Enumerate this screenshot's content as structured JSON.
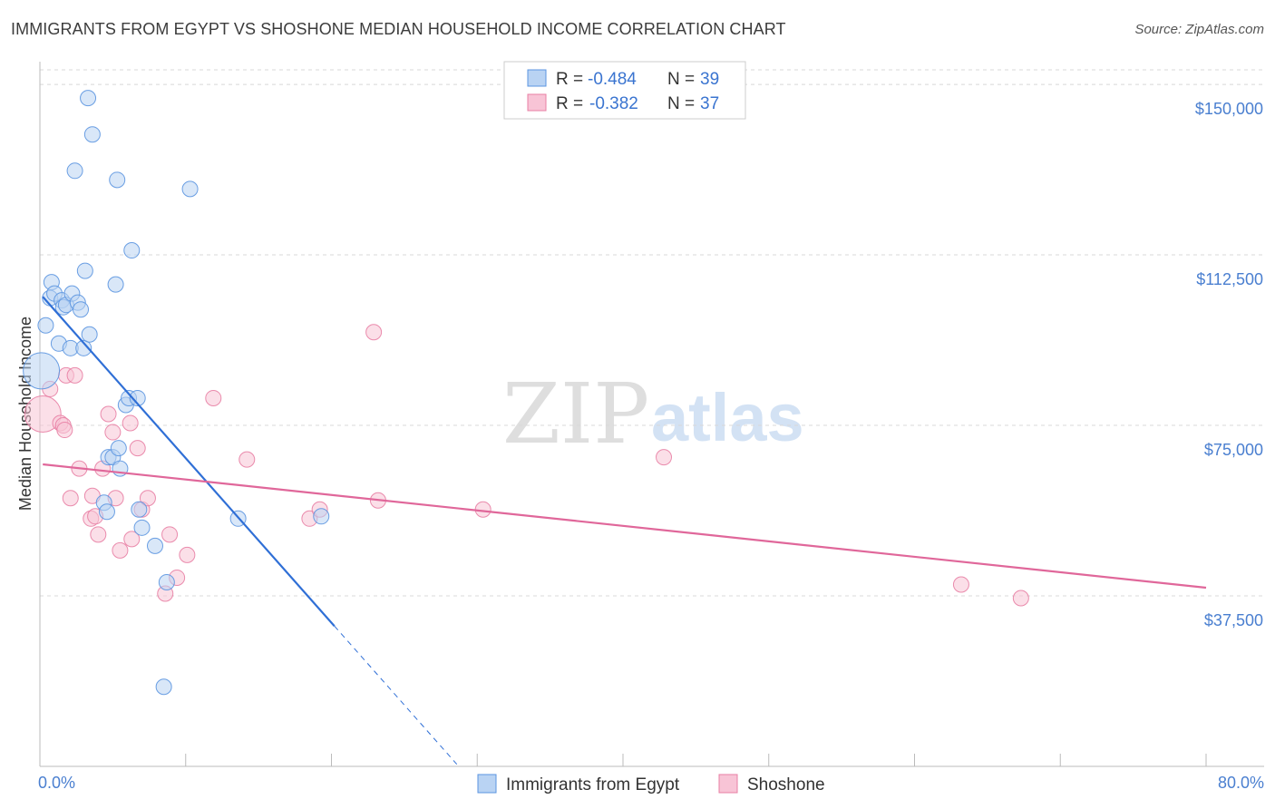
{
  "title": "IMMIGRANTS FROM EGYPT VS SHOSHONE MEDIAN HOUSEHOLD INCOME CORRELATION CHART",
  "source": "Source: ZipAtlas.com",
  "watermark": {
    "part1": "ZIP",
    "part2": "atlas"
  },
  "colors": {
    "blue": "#5b95e0",
    "blue_fill": "#b9d3f3",
    "blue_line": "#2f6fd6",
    "pink": "#e87fa4",
    "pink_fill": "#f8c4d6",
    "pink_line": "#e0679a",
    "tick_text": "#4a7fd0"
  },
  "legend": {
    "r_label": "R = ",
    "n_label": "N = ",
    "rows": [
      {
        "r": "-0.484",
        "n": "39"
      },
      {
        "r": "-0.382",
        "n": "37"
      }
    ]
  },
  "chart_data": {
    "type": "scatter",
    "title": "IMMIGRANTS FROM EGYPT VS SHOSHONE MEDIAN HOUSEHOLD INCOME CORRELATION CHART",
    "xlabel": "",
    "ylabel": "Median Household Income",
    "xlim": [
      0,
      80
    ],
    "ylim": [
      0,
      155000
    ],
    "x_tick_labels": {
      "left": "0.0%",
      "right": "80.0%"
    },
    "y_ticks": [
      {
        "value": 37500,
        "label": "$37,500"
      },
      {
        "value": 75000,
        "label": "$75,000"
      },
      {
        "value": 112500,
        "label": "$112,500"
      },
      {
        "value": 150000,
        "label": "$150,000"
      }
    ],
    "series": [
      {
        "name": "Immigrants from Egypt",
        "color": "blue",
        "r": -0.484,
        "n": 39,
        "trend": {
          "x_start": 0.2,
          "x_solid_end": 20.2,
          "x_dash_end": 28.6,
          "y_at_x0": 104000,
          "slope_per_pct": -3620
        },
        "points": [
          [
            0.1,
            87000
          ],
          [
            0.4,
            97000
          ],
          [
            0.7,
            103000
          ],
          [
            0.8,
            106500
          ],
          [
            1.0,
            104000
          ],
          [
            1.3,
            93000
          ],
          [
            1.5,
            102500
          ],
          [
            1.6,
            101000
          ],
          [
            1.8,
            101500
          ],
          [
            2.1,
            92000
          ],
          [
            2.2,
            104000
          ],
          [
            2.4,
            131000
          ],
          [
            2.6,
            102000
          ],
          [
            2.8,
            100500
          ],
          [
            3.0,
            92000
          ],
          [
            3.1,
            109000
          ],
          [
            3.3,
            147000
          ],
          [
            3.4,
            95000
          ],
          [
            3.6,
            139000
          ],
          [
            4.4,
            58000
          ],
          [
            4.6,
            56000
          ],
          [
            4.7,
            68000
          ],
          [
            5.0,
            68000
          ],
          [
            5.2,
            106000
          ],
          [
            5.3,
            129000
          ],
          [
            5.4,
            70000
          ],
          [
            5.5,
            65500
          ],
          [
            5.9,
            79500
          ],
          [
            6.1,
            81000
          ],
          [
            6.3,
            113500
          ],
          [
            6.7,
            81000
          ],
          [
            6.8,
            56500
          ],
          [
            7.0,
            52500
          ],
          [
            7.9,
            48500
          ],
          [
            8.5,
            17500
          ],
          [
            8.7,
            40500
          ],
          [
            10.3,
            127000
          ],
          [
            13.6,
            54500
          ],
          [
            19.3,
            55000
          ]
        ]
      },
      {
        "name": "Shoshone",
        "color": "pink",
        "r": -0.382,
        "n": 37,
        "trend": {
          "x_start": 0.2,
          "x_end": 80.0,
          "y_at_x0": 66500,
          "slope_per_pct": -340
        },
        "points": [
          [
            0.2,
            77500
          ],
          [
            0.7,
            83000
          ],
          [
            1.4,
            75500
          ],
          [
            1.6,
            75000
          ],
          [
            1.7,
            74000
          ],
          [
            1.8,
            86000
          ],
          [
            2.1,
            59000
          ],
          [
            2.4,
            86000
          ],
          [
            2.7,
            65500
          ],
          [
            3.5,
            54500
          ],
          [
            3.6,
            59500
          ],
          [
            3.8,
            55000
          ],
          [
            4.0,
            51000
          ],
          [
            4.3,
            65500
          ],
          [
            4.7,
            77500
          ],
          [
            5.0,
            73500
          ],
          [
            5.2,
            59000
          ],
          [
            5.5,
            47500
          ],
          [
            6.2,
            75500
          ],
          [
            6.3,
            50000
          ],
          [
            6.7,
            70000
          ],
          [
            7.0,
            56500
          ],
          [
            7.4,
            59000
          ],
          [
            8.6,
            38000
          ],
          [
            8.9,
            51000
          ],
          [
            9.4,
            41500
          ],
          [
            10.1,
            46500
          ],
          [
            11.9,
            81000
          ],
          [
            14.2,
            67500
          ],
          [
            18.5,
            54500
          ],
          [
            19.2,
            56500
          ],
          [
            22.9,
            95500
          ],
          [
            23.2,
            58500
          ],
          [
            30.4,
            56500
          ],
          [
            42.8,
            68000
          ],
          [
            63.2,
            40000
          ],
          [
            67.3,
            37000
          ]
        ]
      }
    ]
  }
}
